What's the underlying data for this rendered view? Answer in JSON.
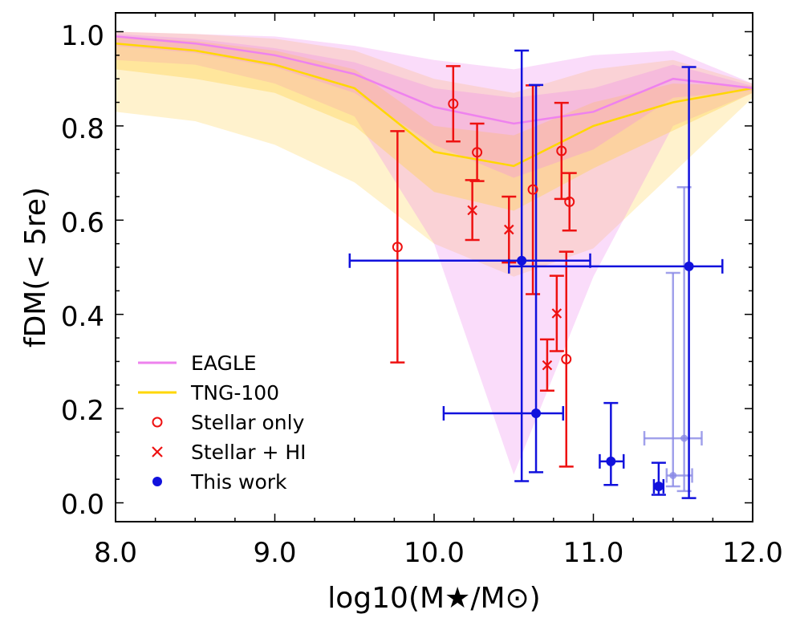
{
  "chart_data": {
    "type": "scatter",
    "xlabel": "log10(M★/M⊙)",
    "ylabel": "fDM(< 5re)",
    "xlim": [
      8.0,
      12.0
    ],
    "ylim": [
      -0.04,
      1.04
    ],
    "xticks": [
      "8.0",
      "9.0",
      "10.0",
      "11.0",
      "12.0"
    ],
    "yticks": [
      "0.0",
      "0.2",
      "0.4",
      "0.6",
      "0.8",
      "1.0"
    ],
    "legend_position": "lower-left",
    "legend": [
      "EAGLE",
      "TNG-100",
      "Stellar only",
      "Stellar + HI",
      "This work"
    ],
    "colors": {
      "eagle": "#ee82ee",
      "eagle_band": "#ee82ee",
      "tng": "#ffd700",
      "tng_band": "#ffd24d",
      "red": "#ee1111",
      "blue": "#1111dd",
      "blue_faint": "#8a8ae6",
      "axis": "#000000"
    },
    "eagle": {
      "x": [
        8.0,
        8.5,
        9.0,
        9.5,
        10.0,
        10.5,
        11.0,
        11.5,
        12.0
      ],
      "median": [
        0.99,
        0.975,
        0.95,
        0.91,
        0.84,
        0.805,
        0.83,
        0.9,
        0.88
      ],
      "band_outer": {
        "low": [
          0.94,
          0.93,
          0.89,
          0.82,
          0.55,
          0.06,
          0.48,
          0.8,
          0.87
        ],
        "high": [
          1.0,
          0.995,
          0.99,
          0.97,
          0.94,
          0.92,
          0.95,
          0.96,
          0.89
        ]
      },
      "band_inner": {
        "low": [
          0.97,
          0.955,
          0.925,
          0.87,
          0.76,
          0.69,
          0.75,
          0.86,
          0.875
        ],
        "high": [
          0.995,
          0.985,
          0.965,
          0.935,
          0.88,
          0.86,
          0.88,
          0.93,
          0.885
        ]
      }
    },
    "tng": {
      "x": [
        8.0,
        8.5,
        9.0,
        9.5,
        10.0,
        10.5,
        11.0,
        11.5,
        12.0
      ],
      "median": [
        0.975,
        0.96,
        0.93,
        0.88,
        0.745,
        0.715,
        0.8,
        0.85,
        0.88
      ],
      "band_outer": {
        "low": [
          0.83,
          0.81,
          0.76,
          0.68,
          0.55,
          0.48,
          0.54,
          0.7,
          0.86
        ],
        "high": [
          1.0,
          0.995,
          0.985,
          0.96,
          0.9,
          0.87,
          0.92,
          0.94,
          0.89
        ]
      },
      "band_inner": {
        "low": [
          0.92,
          0.9,
          0.87,
          0.8,
          0.66,
          0.62,
          0.71,
          0.79,
          0.87
        ],
        "high": [
          0.99,
          0.98,
          0.96,
          0.92,
          0.8,
          0.78,
          0.85,
          0.89,
          0.885
        ]
      }
    },
    "stellar_only": [
      {
        "x": 9.77,
        "y": 0.543,
        "ylo": 0.298,
        "yhi": 0.789
      },
      {
        "x": 10.12,
        "y": 0.847,
        "ylo": 0.767,
        "yhi": 0.927
      },
      {
        "x": 10.27,
        "y": 0.744,
        "ylo": 0.683,
        "yhi": 0.805
      },
      {
        "x": 10.62,
        "y": 0.665,
        "ylo": 0.443,
        "yhi": 0.886
      },
      {
        "x": 10.8,
        "y": 0.747,
        "ylo": 0.645,
        "yhi": 0.849
      },
      {
        "x": 10.85,
        "y": 0.639,
        "ylo": 0.578,
        "yhi": 0.7
      },
      {
        "x": 10.83,
        "y": 0.305,
        "ylo": 0.077,
        "yhi": 0.533
      }
    ],
    "stellar_hi": [
      {
        "x": 10.24,
        "y": 0.621,
        "ylo": 0.558,
        "yhi": 0.685
      },
      {
        "x": 10.47,
        "y": 0.58,
        "ylo": 0.51,
        "yhi": 0.65
      },
      {
        "x": 10.71,
        "y": 0.292,
        "ylo": 0.238,
        "yhi": 0.347
      },
      {
        "x": 10.77,
        "y": 0.402,
        "ylo": 0.322,
        "yhi": 0.482
      }
    ],
    "this_work": [
      {
        "x": 10.55,
        "y": 0.514,
        "xlo": 9.47,
        "xhi": 10.98,
        "ylo": 0.046,
        "yhi": 0.96
      },
      {
        "x": 11.6,
        "y": 0.502,
        "xlo": 10.47,
        "xhi": 11.81,
        "ylo": 0.01,
        "yhi": 0.925
      },
      {
        "x": 10.64,
        "y": 0.19,
        "xlo": 10.06,
        "xhi": 10.81,
        "ylo": 0.065,
        "yhi": 0.887
      },
      {
        "x": 11.11,
        "y": 0.088,
        "xlo": 11.04,
        "xhi": 11.19,
        "ylo": 0.038,
        "yhi": 0.212
      },
      {
        "x": 11.41,
        "y": 0.035,
        "xlo": 11.38,
        "xhi": 11.44,
        "ylo": 0.017,
        "yhi": 0.085
      }
    ],
    "this_work_faint": [
      {
        "x": 11.57,
        "y": 0.137,
        "xlo": 11.32,
        "xhi": 11.68,
        "ylo": 0.025,
        "yhi": 0.67
      },
      {
        "x": 11.5,
        "y": 0.058,
        "xlo": 11.46,
        "xhi": 11.62,
        "ylo": 0.035,
        "yhi": 0.488
      }
    ]
  }
}
